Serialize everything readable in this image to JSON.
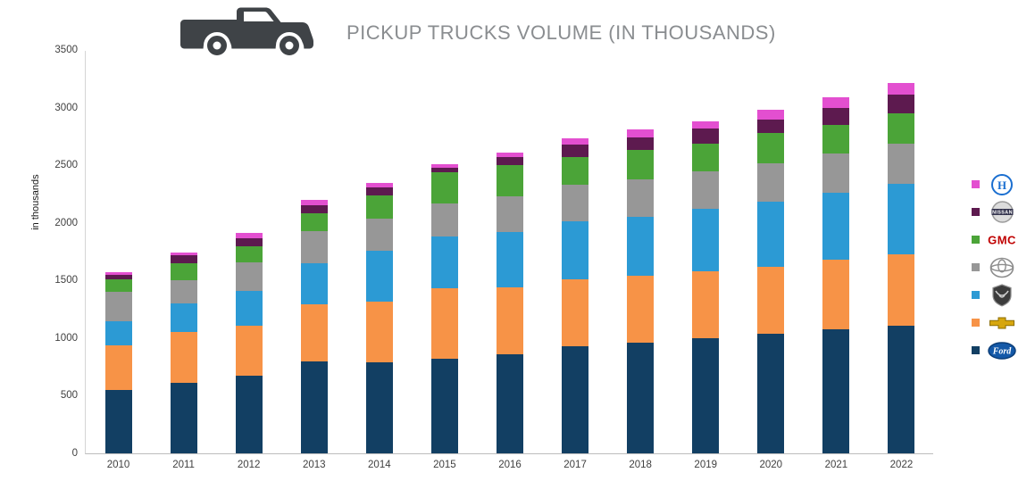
{
  "title": "PICKUP TRUCKS VOLUME (IN THOUSANDS)",
  "header_icon": "pickup-truck-icon",
  "chart_data": {
    "type": "bar",
    "stacked": true,
    "title": "PICKUP TRUCKS VOLUME (IN THOUSANDS)",
    "xlabel": "",
    "ylabel": "in thousands",
    "ylim": [
      0,
      3500
    ],
    "yticks": [
      0,
      500,
      1000,
      1500,
      2000,
      2500,
      3000,
      3500
    ],
    "grid": false,
    "legend_position": "right",
    "categories": [
      "2010",
      "2011",
      "2012",
      "2013",
      "2014",
      "2015",
      "2016",
      "2017",
      "2018",
      "2019",
      "2020",
      "2021",
      "2022"
    ],
    "series": [
      {
        "name": "Ford",
        "color": "#123f63",
        "values": [
          550,
          610,
          670,
          800,
          790,
          820,
          860,
          930,
          960,
          1000,
          1040,
          1080,
          1110
        ]
      },
      {
        "name": "Chevrolet",
        "color": "#f79347",
        "values": [
          390,
          440,
          440,
          490,
          530,
          610,
          580,
          580,
          580,
          580,
          580,
          600,
          620
        ]
      },
      {
        "name": "Ram",
        "color": "#2c9ad4",
        "values": [
          210,
          250,
          300,
          360,
          440,
          450,
          480,
          500,
          510,
          540,
          560,
          580,
          610
        ]
      },
      {
        "name": "Toyota",
        "color": "#979797",
        "values": [
          250,
          200,
          250,
          280,
          280,
          290,
          310,
          320,
          330,
          330,
          340,
          340,
          350
        ]
      },
      {
        "name": "GMC",
        "color": "#4ba438",
        "values": [
          110,
          150,
          140,
          150,
          200,
          270,
          270,
          240,
          250,
          240,
          260,
          250,
          260
        ]
      },
      {
        "name": "Nissan",
        "color": "#5d1a4f",
        "values": [
          40,
          70,
          70,
          70,
          70,
          40,
          70,
          110,
          110,
          130,
          120,
          150,
          160
        ]
      },
      {
        "name": "Honda",
        "color": "#e34fd0",
        "values": [
          20,
          20,
          40,
          50,
          40,
          30,
          40,
          50,
          70,
          60,
          80,
          90,
          100
        ]
      }
    ]
  },
  "legend": {
    "items": [
      {
        "label": "Honda",
        "series": "Honda",
        "icon": "honda-logo"
      },
      {
        "label": "Nissan",
        "series": "Nissan",
        "icon": "nissan-logo"
      },
      {
        "label": "GMC",
        "series": "GMC",
        "icon": "gmc-logo"
      },
      {
        "label": "Toyota",
        "series": "Toyota",
        "icon": "toyota-logo"
      },
      {
        "label": "Ram",
        "series": "Ram",
        "icon": "ram-logo"
      },
      {
        "label": "Chevrolet",
        "series": "Chevrolet",
        "icon": "chevrolet-logo"
      },
      {
        "label": "Ford",
        "series": "Ford",
        "icon": "ford-logo"
      }
    ]
  }
}
